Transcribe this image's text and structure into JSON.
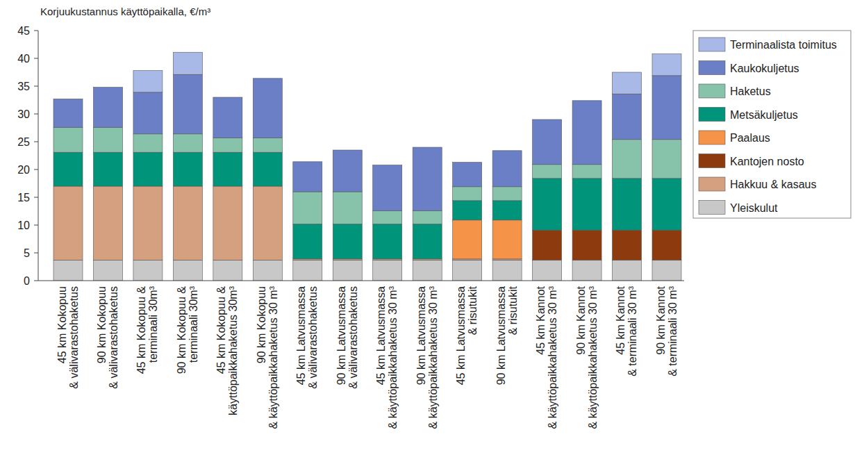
{
  "chart_data": {
    "type": "bar",
    "stacked": true,
    "title": "Korjuukustannus käyttöpaikalla, €/m³",
    "legend": "right",
    "grid": false,
    "ylim": [
      0,
      45
    ],
    "yticks": [
      0,
      5,
      10,
      15,
      20,
      25,
      30,
      35,
      40,
      45
    ],
    "categories": [
      "45 km Kokopuu\n& välivarastohaketus",
      "90 km Kokopuu\n& välivarastohaketus",
      "45 km Kokopuu &\nterminaali 30m³",
      "90 km Kokopuu &\nterminaali 30m³",
      "45 km Kokopuu &\nkäyttöpaikkahaketus 30m³",
      "90 km Kokopuu\n& käyttöpaikkahaketus 30 m³",
      "45 km Latvusmassa\n& välivarastohaketus",
      "90 km Latvusmassa\n& välivarastohaketus",
      "45 km Latvusmassa\n& käyttöpaikkahaketus 30 m³",
      "90 km Latvusmassa\n& käyttöpaikkahaketus 30 m³",
      "45 km Latvusmassa\n& risutukit",
      "90 km Latvusmassa\n& risutukit",
      "45 km Kannot\n& käyttöpaikkahaketus 30 m³",
      "90 km Kannot\n& käyttöpaikkahaketus 30 m³",
      "45 km Kannot\n& terminaali 30 m³",
      "90 km Kannot\n& terminaali 30 m³"
    ],
    "series": [
      {
        "name": "Yleiskulut",
        "color": "#c8c8c8",
        "values": [
          3.7,
          3.7,
          3.7,
          3.7,
          3.7,
          3.7,
          3.7,
          3.7,
          3.7,
          3.7,
          3.7,
          3.7,
          3.7,
          3.7,
          3.7,
          3.7
        ]
      },
      {
        "name": "Hakkuu & kasaus",
        "color": "#d4a07f",
        "values": [
          13.3,
          13.3,
          13.3,
          13.3,
          13.3,
          13.3,
          0.2,
          0.2,
          0.2,
          0.2,
          0.2,
          0.2,
          0,
          0,
          0,
          0
        ]
      },
      {
        "name": "Kantojen nosto",
        "color": "#8c3a0e",
        "values": [
          0,
          0,
          0,
          0,
          0,
          0,
          0,
          0,
          0,
          0,
          0,
          0,
          5.4,
          5.4,
          5.4,
          5.4
        ]
      },
      {
        "name": "Paalaus",
        "color": "#f59448",
        "values": [
          0,
          0,
          0,
          0,
          0,
          0,
          0,
          0,
          0,
          0,
          7.0,
          7.0,
          0,
          0,
          0,
          0
        ]
      },
      {
        "name": "Metsäkuljetus",
        "color": "#00947a",
        "values": [
          6.1,
          6.1,
          6.1,
          6.1,
          6.1,
          6.1,
          6.3,
          6.3,
          6.3,
          6.3,
          3.5,
          3.5,
          9.3,
          9.3,
          9.3,
          9.3
        ]
      },
      {
        "name": "Haketus",
        "color": "#87c2ab",
        "values": [
          4.5,
          4.5,
          3.3,
          3.3,
          2.6,
          2.6,
          5.8,
          5.8,
          2.4,
          2.4,
          2.5,
          2.5,
          2.5,
          2.5,
          7.0,
          7.0
        ]
      },
      {
        "name": "Kaukokuljetus",
        "color": "#6a7fc5",
        "values": [
          5.1,
          7.2,
          7.5,
          10.7,
          7.3,
          10.7,
          5.4,
          7.5,
          8.2,
          11.4,
          4.4,
          6.5,
          8.1,
          11.5,
          8.2,
          11.5
        ]
      },
      {
        "name": "Terminaalista toimitus",
        "color": "#a9b9e7",
        "values": [
          0,
          0,
          3.9,
          4.0,
          0,
          0,
          0,
          0,
          0,
          0,
          0,
          0,
          0,
          0,
          3.9,
          3.9
        ]
      }
    ]
  }
}
